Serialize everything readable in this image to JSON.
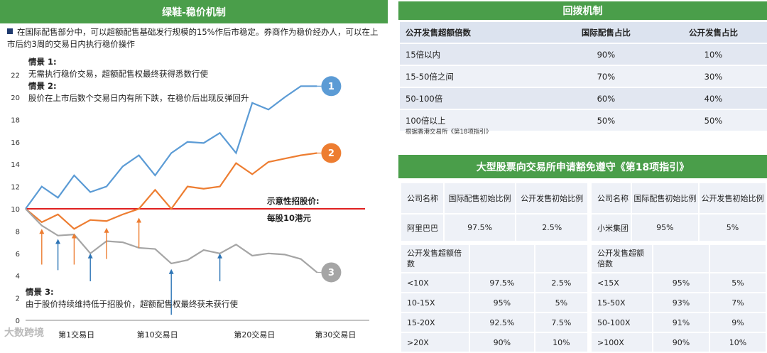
{
  "left": {
    "header": "绿鞋-稳价机制",
    "intro": "在国际配售部分中，可以超额配售基础发行规模的15%作后市稳定。券商作为稳价经办人，可以在上市后约3周的交易日内执行稳价操作",
    "scenario1_title": "情景 1:",
    "scenario1_text": "无需执行稳价交易，超额配售权最终获得悉数行使",
    "scenario2_title": "情景 2:",
    "scenario2_text": "股价在上市后数个交易日内有所下跌，在稳价后出现反弹回升",
    "scenario3_title": "情景 3:",
    "scenario3_text": "由于股价持续维持低于招股价，超额配售权最终获未获行使",
    "price_label1": "示意性招股价:",
    "price_label2": "每股10港元",
    "watermark": "大数跨境"
  },
  "chart_data": {
    "type": "line",
    "x": [
      0,
      1,
      2,
      3,
      4,
      5,
      6,
      7,
      8,
      9,
      10,
      11,
      12,
      13,
      14,
      15,
      16,
      17,
      18,
      19,
      20,
      21
    ],
    "ylim": [
      0,
      22
    ],
    "yticks": [
      0,
      2,
      4,
      6,
      8,
      10,
      12,
      14,
      16,
      18,
      20,
      22
    ],
    "xtick_labels": [
      {
        "x": 2,
        "label": "第1交易日"
      },
      {
        "x": 7,
        "label": "第10交易日"
      },
      {
        "x": 13,
        "label": "第20交易日"
      },
      {
        "x": 18,
        "label": "第30交易日"
      }
    ],
    "series": [
      {
        "name": "1",
        "color": "#5b9bd5",
        "values": [
          10,
          12,
          11,
          13,
          11.5,
          12,
          13.8,
          14.8,
          13,
          15,
          16,
          15.9,
          16.8,
          15,
          19.5,
          18.9,
          20,
          21,
          21,
          null,
          null,
          null
        ]
      },
      {
        "name": "2",
        "color": "#ed7d31",
        "values": [
          10,
          8.8,
          9.5,
          8.2,
          9,
          8.9,
          9.5,
          10,
          11.7,
          10,
          12,
          11.8,
          12,
          14.1,
          13.1,
          14.2,
          14.5,
          14.8,
          15,
          null,
          null,
          null
        ]
      },
      {
        "name": "3",
        "color": "#a5a5a5",
        "values": [
          10,
          8.5,
          7.6,
          7.7,
          6,
          7.1,
          7,
          6.5,
          6.4,
          5.1,
          5.4,
          6.3,
          6,
          6.8,
          5.8,
          6,
          5.9,
          5.5,
          4.3,
          null,
          null,
          null
        ]
      }
    ],
    "reference_line": {
      "y": 10,
      "color": "#e02020"
    },
    "arrows": [
      {
        "x": 1,
        "from": 5.0,
        "to": 8.2,
        "color": "#ed7d31"
      },
      {
        "x": 2,
        "from": 4.5,
        "to": 7.3,
        "color": "#2e75b6"
      },
      {
        "x": 3,
        "from": 5.0,
        "to": 7.8,
        "color": "#ed7d31"
      },
      {
        "x": 4,
        "from": 3.5,
        "to": 6.0,
        "color": "#2e75b6"
      },
      {
        "x": 5,
        "from": 5.5,
        "to": 8.3,
        "color": "#ed7d31"
      },
      {
        "x": 7,
        "from": 6.5,
        "to": 9.2,
        "color": "#ed7d31"
      },
      {
        "x": 9,
        "from": 0.5,
        "to": 4.6,
        "color": "#2e75b6"
      },
      {
        "x": 12,
        "from": 3.5,
        "to": 6.0,
        "color": "#2e75b6"
      }
    ]
  },
  "huibo": {
    "header": "回拨机制",
    "columns": [
      "公开发售超额倍数",
      "国际配售占比",
      "公开发售占比"
    ],
    "rows": [
      [
        "15倍以内",
        "90%",
        "10%"
      ],
      [
        "15-50倍之间",
        "70%",
        "30%"
      ],
      [
        "50-100倍",
        "60%",
        "40%"
      ],
      [
        "100倍以上",
        "50%",
        "50%"
      ]
    ],
    "note": "根据香港交易所《第18项指引》"
  },
  "guide18": {
    "header": "大型股票向交易所申请豁免遵守《第18项指引》",
    "company_col": "公司名称",
    "intl_col": "国际配售初始比例",
    "public_col": "公开发售初始比例",
    "multiple_col": "公开发售超额倍数",
    "alibaba": {
      "name": "阿里巴巴",
      "intl": "97.5%",
      "public": "2.5%"
    },
    "xiaomi": {
      "name": "小米集团",
      "intl": "95%",
      "public": "5%"
    },
    "alibaba_rows": [
      [
        "<10X",
        "97.5%",
        "2.5%"
      ],
      [
        "10-15X",
        "95%",
        "5%"
      ],
      [
        "15-20X",
        "92.5%",
        "7.5%"
      ],
      [
        ">20X",
        "90%",
        "10%"
      ]
    ],
    "xiaomi_rows": [
      [
        "<15X",
        "95%",
        "5%"
      ],
      [
        "15-50X",
        "93%",
        "7%"
      ],
      [
        "50-100X",
        "91%",
        "9%"
      ],
      [
        ">100X",
        "90%",
        "10%"
      ]
    ]
  }
}
